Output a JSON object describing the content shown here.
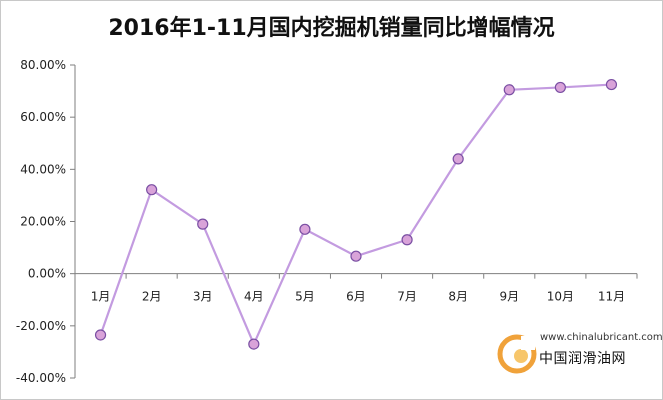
{
  "chart_data": {
    "type": "line",
    "title": "2016年1-11月国内挖掘机销量同比增幅情况",
    "xlabel": "",
    "ylabel": "",
    "categories": [
      "1月",
      "2月",
      "3月",
      "4月",
      "5月",
      "6月",
      "7月",
      "8月",
      "9月",
      "10月",
      "11月"
    ],
    "series": [
      {
        "values": [
          -23.5,
          32.2,
          19.0,
          -27.0,
          17.0,
          6.7,
          13.0,
          44.0,
          70.5,
          71.4,
          72.5
        ]
      }
    ],
    "ylim": [
      -40,
      80
    ],
    "yticks": [
      "80.00%",
      "60.00%",
      "40.00%",
      "20.00%",
      "0.00%",
      "-20.00%",
      "-40.00%"
    ],
    "grid": false,
    "legend": "none",
    "colors": {
      "line": "#c39be0",
      "marker_fill": "#d9a3d9",
      "marker_stroke": "#7a4fa3",
      "axis": "#7f7f7f"
    }
  },
  "watermark": {
    "url": "www.chinalubricant.com",
    "name": "中国润滑油网"
  }
}
